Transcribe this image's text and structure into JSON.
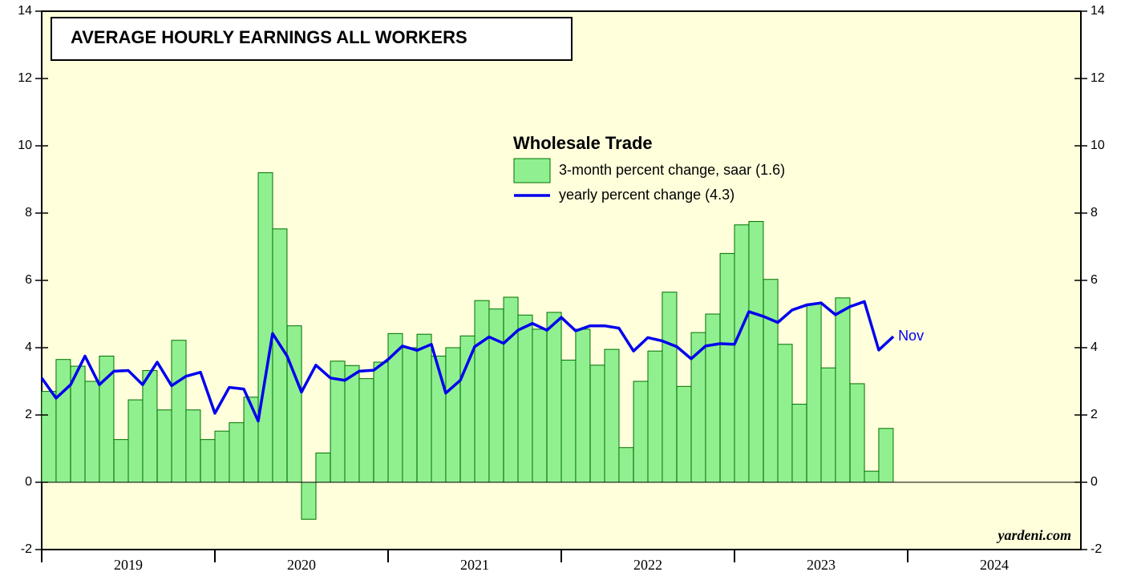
{
  "chart_data": {
    "type": "bar",
    "title": "AVERAGE HOURLY EARNINGS ALL WORKERS",
    "legend_title": "Wholesale Trade",
    "annotation": "Nov",
    "source": "yardeni.com",
    "xlim": [
      2019,
      2025
    ],
    "xticks": [
      2019,
      2020,
      2021,
      2022,
      2023,
      2024
    ],
    "ylim": [
      -2,
      14
    ],
    "yticks": [
      -2,
      0,
      2,
      4,
      6,
      8,
      10,
      12,
      14
    ],
    "series": [
      {
        "name": "3-month percent change, saar (1.6)",
        "type": "bar",
        "color": "#90f090",
        "edge_color": "#007000",
        "x": [
          2019.0,
          2019.083,
          2019.167,
          2019.25,
          2019.333,
          2019.417,
          2019.5,
          2019.583,
          2019.667,
          2019.75,
          2019.833,
          2019.917,
          2020.0,
          2020.083,
          2020.167,
          2020.25,
          2020.333,
          2020.417,
          2020.5,
          2020.583,
          2020.667,
          2020.75,
          2020.833,
          2020.917,
          2021.0,
          2021.083,
          2021.167,
          2021.25,
          2021.333,
          2021.417,
          2021.5,
          2021.583,
          2021.667,
          2021.75,
          2021.833,
          2021.917,
          2022.0,
          2022.083,
          2022.167,
          2022.25,
          2022.333,
          2022.417,
          2022.5,
          2022.583,
          2022.667,
          2022.75,
          2022.833,
          2022.917,
          2023.0,
          2023.083,
          2023.167,
          2023.25,
          2023.333,
          2023.417,
          2023.5,
          2023.583,
          2023.667,
          2023.75,
          2023.833
        ],
        "values": [
          2.7,
          3.65,
          3.45,
          3.0,
          3.75,
          1.27,
          2.45,
          3.32,
          2.15,
          4.22,
          2.15,
          1.27,
          1.52,
          1.77,
          2.53,
          9.2,
          7.53,
          4.65,
          -1.1,
          0.87,
          3.6,
          3.47,
          3.08,
          3.57,
          4.42,
          4.0,
          4.4,
          3.75,
          4.0,
          4.35,
          5.4,
          5.15,
          5.5,
          4.97,
          4.55,
          5.05,
          3.63,
          4.55,
          3.48,
          3.95,
          1.03,
          3.0,
          3.9,
          5.65,
          2.85,
          4.45,
          5.0,
          6.8,
          7.65,
          7.75,
          6.03,
          4.1,
          2.32,
          5.3,
          3.4,
          5.48,
          2.93,
          0.33,
          1.6
        ]
      },
      {
        "name": "yearly percent change (4.3)",
        "type": "line",
        "color": "#0000ee",
        "x": [
          2019.0,
          2019.083,
          2019.167,
          2019.25,
          2019.333,
          2019.417,
          2019.5,
          2019.583,
          2019.667,
          2019.75,
          2019.833,
          2019.917,
          2020.0,
          2020.083,
          2020.167,
          2020.25,
          2020.333,
          2020.417,
          2020.5,
          2020.583,
          2020.667,
          2020.75,
          2020.833,
          2020.917,
          2021.0,
          2021.083,
          2021.167,
          2021.25,
          2021.333,
          2021.417,
          2021.5,
          2021.583,
          2021.667,
          2021.75,
          2021.833,
          2021.917,
          2022.0,
          2022.083,
          2022.167,
          2022.25,
          2022.333,
          2022.417,
          2022.5,
          2022.583,
          2022.667,
          2022.75,
          2022.833,
          2022.917,
          2023.0,
          2023.083,
          2023.167,
          2023.25,
          2023.333,
          2023.417,
          2023.5,
          2023.583,
          2023.667,
          2023.75,
          2023.833,
          2023.917
        ],
        "values": [
          3.1,
          2.5,
          2.9,
          3.75,
          2.9,
          3.3,
          3.32,
          2.9,
          3.57,
          2.87,
          3.15,
          3.27,
          2.05,
          2.82,
          2.77,
          1.82,
          4.42,
          3.75,
          2.68,
          3.48,
          3.1,
          3.03,
          3.3,
          3.33,
          3.65,
          4.05,
          3.92,
          4.1,
          2.65,
          3.03,
          4.03,
          4.32,
          4.13,
          4.52,
          4.72,
          4.52,
          4.9,
          4.5,
          4.65,
          4.65,
          4.58,
          3.9,
          4.3,
          4.2,
          4.03,
          3.67,
          4.05,
          4.12,
          4.1,
          5.07,
          4.93,
          4.75,
          5.12,
          5.27,
          5.33,
          4.98,
          5.22,
          5.37,
          3.93,
          4.33
        ]
      }
    ]
  }
}
